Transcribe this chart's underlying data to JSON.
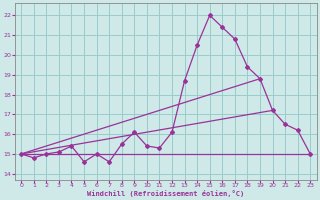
{
  "xlabel": "Windchill (Refroidissement éolien,°C)",
  "background_color": "#cfe8e8",
  "grid_color": "#99cccc",
  "line_color": "#993399",
  "xlim": [
    -0.5,
    23.5
  ],
  "ylim": [
    13.7,
    22.6
  ],
  "xticks": [
    0,
    1,
    2,
    3,
    4,
    5,
    6,
    7,
    8,
    9,
    10,
    11,
    12,
    13,
    14,
    15,
    16,
    17,
    18,
    19,
    20,
    21,
    22,
    23
  ],
  "yticks": [
    14,
    15,
    16,
    17,
    18,
    19,
    20,
    21,
    22
  ],
  "line1_x": [
    0,
    1,
    2,
    3,
    4,
    5,
    6,
    7,
    8,
    9,
    10,
    11,
    12,
    13,
    14,
    15,
    16,
    17,
    18,
    19,
    20,
    21,
    22,
    23
  ],
  "line1_y": [
    15.0,
    14.8,
    15.0,
    15.1,
    15.4,
    14.6,
    15.0,
    14.6,
    15.5,
    16.1,
    15.4,
    15.3,
    16.1,
    18.7,
    20.5,
    22.0,
    21.4,
    20.8,
    19.4,
    18.8,
    17.2,
    16.5,
    16.2,
    15.0
  ],
  "line2_x": [
    0,
    20
  ],
  "line2_y": [
    15.0,
    17.2
  ],
  "line3_x": [
    0,
    19
  ],
  "line3_y": [
    15.0,
    18.8
  ],
  "line4_x": [
    0,
    23
  ],
  "line4_y": [
    15.0,
    15.0
  ]
}
